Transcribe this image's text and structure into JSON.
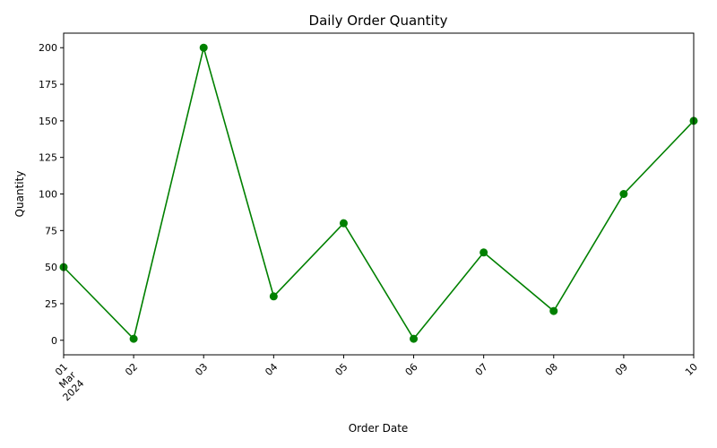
{
  "chart_data": {
    "type": "line",
    "title": "Daily Order Quantity",
    "xlabel": "Order Date",
    "ylabel": "Quantity",
    "x": [
      "2024-03-01",
      "2024-03-02",
      "2024-03-03",
      "2024-03-04",
      "2024-03-05",
      "2024-03-06",
      "2024-03-07",
      "2024-03-08",
      "2024-03-09",
      "2024-03-10"
    ],
    "x_tick_labels": [
      "01\nMar\n2024",
      "02",
      "03",
      "04",
      "05",
      "06",
      "07",
      "08",
      "09",
      "10"
    ],
    "values": [
      50,
      1,
      200,
      30,
      80,
      1,
      60,
      20,
      100,
      150
    ],
    "ylim": [
      -9.95,
      209.95
    ],
    "y_ticks": [
      0,
      25,
      50,
      75,
      100,
      125,
      150,
      175,
      200
    ],
    "color": "#008000",
    "marker": "circle",
    "grid": false
  }
}
